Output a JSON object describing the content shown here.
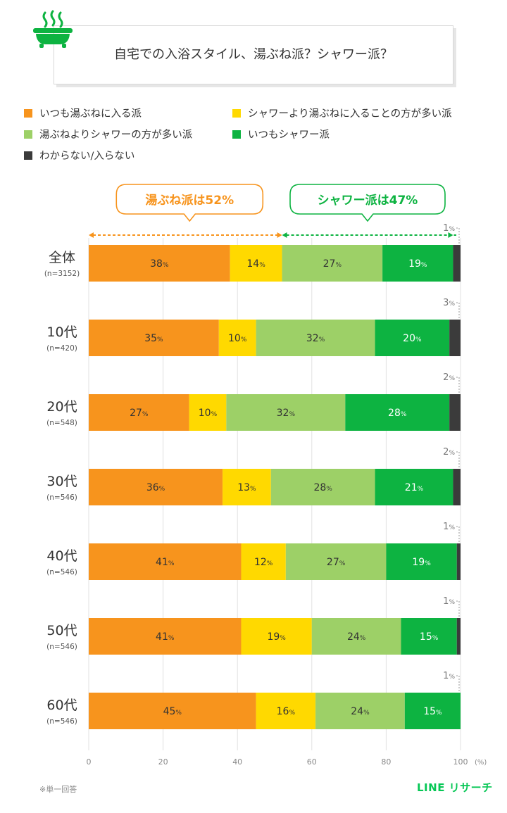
{
  "title": "自宅での入浴スタイル、湯ぶね派？シャワー派？",
  "icon": "bathtub-icon",
  "colors": {
    "orange": "#f7941d",
    "yellow": "#ffd900",
    "lightgreen": "#9dd067",
    "green": "#0db341",
    "dark": "#3b3b3b",
    "grid": "#e0e0e0",
    "brand": "#06c755"
  },
  "callouts": {
    "bath_label": "湯ぶね派は52%",
    "shower_label": "シャワー派は47%"
  },
  "footnote": "※単一回答",
  "brand": "LINE リサーチ",
  "chart_data": {
    "type": "bar",
    "orientation": "horizontal",
    "stacked": true,
    "categories": [
      "全体",
      "10代",
      "20代",
      "30代",
      "40代",
      "50代",
      "60代"
    ],
    "sample_sizes": [
      "(n=3152)",
      "(n=420)",
      "(n=548)",
      "(n=546)",
      "(n=546)",
      "(n=546)",
      "(n=546)"
    ],
    "series": [
      {
        "name": "いつも湯ぶねに入る派",
        "color": "#f7941d",
        "values": [
          38,
          35,
          27,
          36,
          41,
          41,
          45
        ]
      },
      {
        "name": "シャワーより湯ぶねに入ることの方が多い派",
        "color": "#ffd900",
        "values": [
          14,
          10,
          10,
          13,
          12,
          19,
          16
        ]
      },
      {
        "name": "湯ぶねよりシャワーの方が多い派",
        "color": "#9dd067",
        "values": [
          27,
          32,
          32,
          28,
          27,
          24,
          24
        ]
      },
      {
        "name": "いつもシャワー派",
        "color": "#0db341",
        "values": [
          19,
          20,
          28,
          21,
          19,
          15,
          15
        ]
      },
      {
        "name": "わからない/入らない",
        "color": "#3b3b3b",
        "values": [
          1,
          3,
          2,
          2,
          1,
          1,
          1
        ]
      }
    ],
    "xlim": [
      0,
      100
    ],
    "xticks": [
      0,
      20,
      40,
      60,
      80,
      100
    ],
    "xunit": "(%)",
    "value_suffix": "%",
    "grid": true,
    "legend_position": "top"
  }
}
